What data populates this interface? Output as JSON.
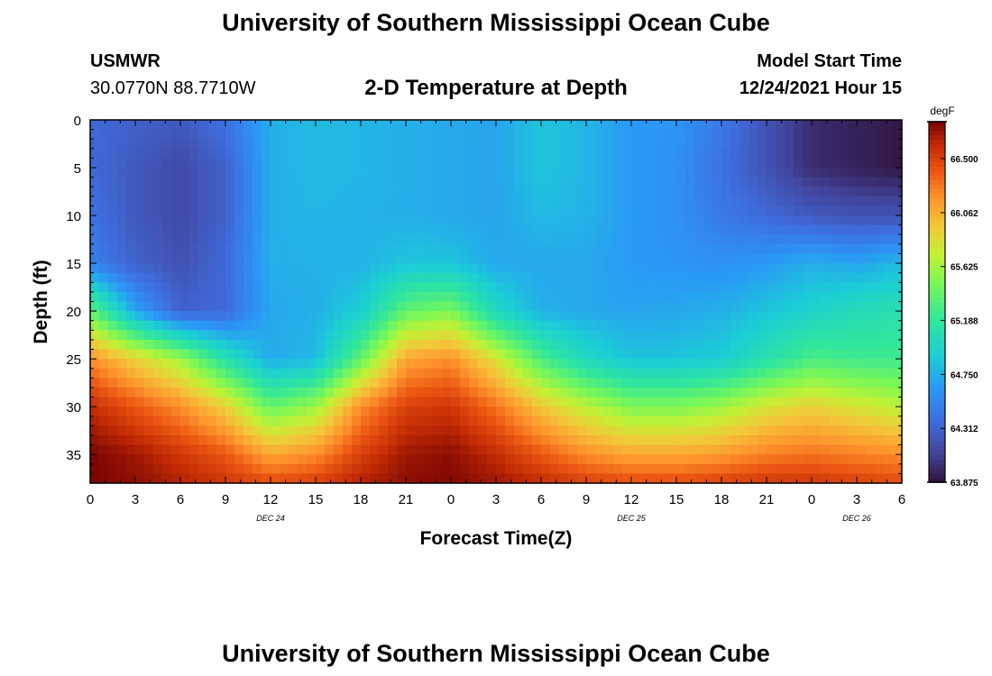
{
  "page": {
    "title": "University of Southern Mississippi Ocean Cube",
    "station": "USMWR",
    "coords": "30.0770N  88.7710W",
    "subtitle": "2-D Temperature at Depth",
    "model_label": "Model Start Time",
    "model_time": "12/24/2021 Hour 15",
    "bottom_title": "University of Southern Mississippi Ocean Cube"
  },
  "chart_data": {
    "type": "heatmap",
    "title": "2-D Temperature at Depth",
    "xlabel": "Forecast Time(Z)",
    "ylabel": "Depth (ft)",
    "x_hours": [
      0,
      54
    ],
    "y_range": [
      0,
      38
    ],
    "x_ticks": [
      {
        "h": 0,
        "label": "0"
      },
      {
        "h": 3,
        "label": "3"
      },
      {
        "h": 6,
        "label": "6"
      },
      {
        "h": 9,
        "label": "9"
      },
      {
        "h": 12,
        "label": "12"
      },
      {
        "h": 15,
        "label": "15"
      },
      {
        "h": 18,
        "label": "18"
      },
      {
        "h": 21,
        "label": "21"
      },
      {
        "h": 24,
        "label": "0"
      },
      {
        "h": 27,
        "label": "3"
      },
      {
        "h": 30,
        "label": "6"
      },
      {
        "h": 33,
        "label": "9"
      },
      {
        "h": 36,
        "label": "12"
      },
      {
        "h": 39,
        "label": "15"
      },
      {
        "h": 42,
        "label": "18"
      },
      {
        "h": 45,
        "label": "21"
      },
      {
        "h": 48,
        "label": "0"
      },
      {
        "h": 51,
        "label": "3"
      },
      {
        "h": 54,
        "label": "6"
      }
    ],
    "day_labels": [
      {
        "h": 12,
        "label": "DEC 24"
      },
      {
        "h": 36,
        "label": "DEC 25"
      },
      {
        "h": 51,
        "label": "DEC 26"
      }
    ],
    "y_ticks": [
      0,
      5,
      10,
      15,
      20,
      25,
      30,
      35
    ],
    "colorbar": {
      "unit": "degF",
      "min": 63.875,
      "max": 66.8,
      "ticks": [
        "66.500",
        "66.062",
        "65.625",
        "65.188",
        "64.750",
        "64.312",
        "63.875"
      ]
    },
    "depths_ft": [
      0,
      5,
      10,
      15,
      20,
      25,
      30,
      35,
      38
    ],
    "times_h": [
      0,
      3,
      6,
      9,
      12,
      15,
      18,
      21,
      24,
      27,
      30,
      33,
      36,
      39,
      42,
      45,
      48,
      51,
      54
    ],
    "temperature_degF": [
      [
        64.35,
        64.3,
        64.25,
        64.4,
        64.75,
        64.8,
        64.78,
        64.75,
        64.72,
        64.7,
        64.85,
        64.78,
        64.65,
        64.62,
        64.45,
        64.2,
        64.0,
        63.95,
        63.9
      ],
      [
        64.35,
        64.25,
        64.15,
        64.3,
        64.75,
        64.8,
        64.78,
        64.75,
        64.72,
        64.7,
        64.85,
        64.78,
        64.65,
        64.6,
        64.4,
        64.2,
        64.0,
        63.95,
        63.9
      ],
      [
        64.4,
        64.25,
        64.15,
        64.3,
        64.75,
        64.78,
        64.76,
        64.75,
        64.72,
        64.7,
        64.8,
        64.76,
        64.65,
        64.6,
        64.45,
        64.35,
        64.25,
        64.2,
        64.2
      ],
      [
        64.5,
        64.3,
        64.2,
        64.35,
        64.75,
        64.76,
        64.76,
        64.85,
        64.85,
        64.72,
        64.72,
        64.72,
        64.65,
        64.62,
        64.6,
        64.65,
        64.75,
        64.7,
        64.8
      ],
      [
        65.4,
        64.7,
        64.3,
        64.35,
        64.72,
        64.75,
        64.9,
        65.4,
        65.5,
        65.0,
        64.75,
        64.72,
        64.7,
        64.72,
        64.75,
        64.85,
        64.95,
        65.05,
        65.1
      ],
      [
        66.2,
        65.9,
        65.6,
        65.1,
        64.72,
        64.8,
        65.4,
        66.1,
        66.2,
        65.8,
        65.3,
        65.0,
        64.85,
        64.85,
        64.9,
        65.1,
        65.3,
        65.25,
        65.25
      ],
      [
        66.6,
        66.4,
        66.2,
        65.9,
        65.4,
        65.6,
        66.2,
        66.5,
        66.55,
        66.3,
        65.95,
        65.7,
        65.5,
        65.5,
        65.6,
        65.8,
        65.9,
        65.8,
        65.7
      ],
      [
        66.8,
        66.7,
        66.55,
        66.4,
        66.1,
        66.2,
        66.5,
        66.7,
        66.75,
        66.6,
        66.4,
        66.2,
        66.1,
        66.1,
        66.15,
        66.25,
        66.3,
        66.25,
        66.2
      ],
      [
        66.8,
        66.75,
        66.65,
        66.55,
        66.45,
        66.5,
        66.65,
        66.75,
        66.78,
        66.7,
        66.6,
        66.5,
        66.45,
        66.45,
        66.5,
        66.55,
        66.55,
        66.5,
        66.45
      ]
    ]
  }
}
